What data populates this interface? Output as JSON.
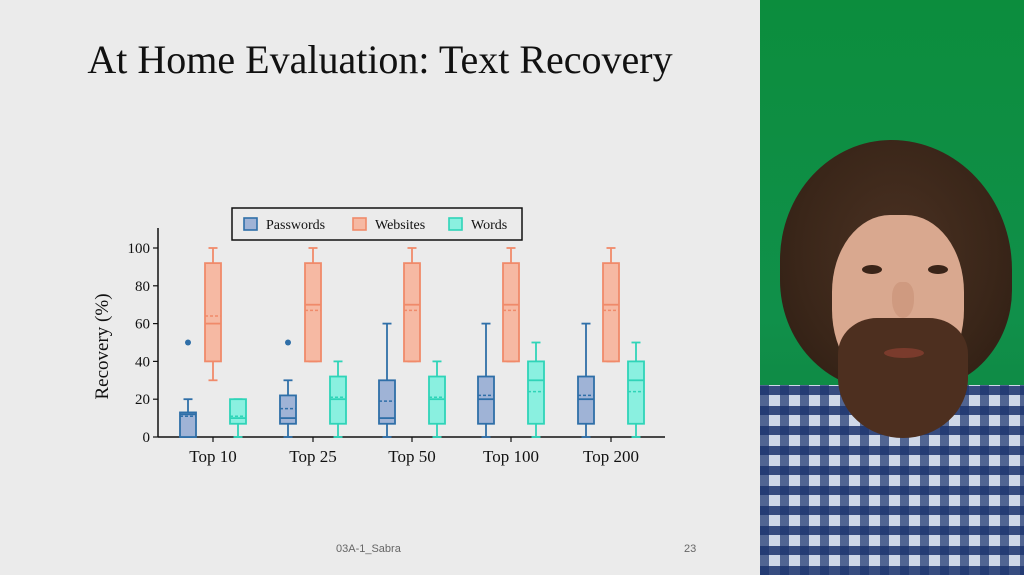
{
  "slide": {
    "title": "At Home Evaluation: Text Recovery",
    "footer_left": "03A-1_Sabra",
    "footer_right": "23"
  },
  "chart_data": {
    "type": "boxplot",
    "title": "",
    "xlabel": "",
    "ylabel": "Recovery (%)",
    "ylim": [
      0,
      100
    ],
    "yticks": [
      0,
      20,
      40,
      60,
      80,
      100
    ],
    "categories": [
      "Top 10",
      "Top 25",
      "Top 50",
      "Top 100",
      "Top 200"
    ],
    "legend_position": "top-center",
    "series": [
      {
        "name": "Passwords",
        "color": "#2f6fa8",
        "fill": "#9fb3d6",
        "boxes": [
          {
            "whisker_low": 0,
            "q1": 0,
            "median": 12,
            "mean": 11,
            "q3": 13,
            "whisker_high": 20,
            "outliers": [
              50
            ]
          },
          {
            "whisker_low": 0,
            "q1": 7,
            "median": 10,
            "mean": 15,
            "q3": 22,
            "whisker_high": 30,
            "outliers": [
              50
            ]
          },
          {
            "whisker_low": 0,
            "q1": 7,
            "median": 10,
            "mean": 19,
            "q3": 30,
            "whisker_high": 60,
            "outliers": []
          },
          {
            "whisker_low": 0,
            "q1": 7,
            "median": 20,
            "mean": 22,
            "q3": 32,
            "whisker_high": 60,
            "outliers": []
          },
          {
            "whisker_low": 0,
            "q1": 7,
            "median": 20,
            "mean": 22,
            "q3": 32,
            "whisker_high": 60,
            "outliers": []
          }
        ]
      },
      {
        "name": "Websites",
        "color": "#f08a6a",
        "fill": "#f6b9a3",
        "boxes": [
          {
            "whisker_low": 30,
            "q1": 40,
            "median": 60,
            "mean": 64,
            "q3": 92,
            "whisker_high": 100,
            "outliers": []
          },
          {
            "whisker_low": 40,
            "q1": 40,
            "median": 70,
            "mean": 67,
            "q3": 92,
            "whisker_high": 100,
            "outliers": []
          },
          {
            "whisker_low": 40,
            "q1": 40,
            "median": 70,
            "mean": 67,
            "q3": 92,
            "whisker_high": 100,
            "outliers": []
          },
          {
            "whisker_low": 40,
            "q1": 40,
            "median": 70,
            "mean": 67,
            "q3": 92,
            "whisker_high": 100,
            "outliers": []
          },
          {
            "whisker_low": 40,
            "q1": 40,
            "median": 70,
            "mean": 67,
            "q3": 92,
            "whisker_high": 100,
            "outliers": []
          }
        ]
      },
      {
        "name": "Words",
        "color": "#2fd4b8",
        "fill": "#8af0e0",
        "boxes": [
          {
            "whisker_low": 0,
            "q1": 7,
            "median": 10,
            "mean": 11,
            "q3": 20,
            "whisker_high": 20,
            "outliers": []
          },
          {
            "whisker_low": 0,
            "q1": 7,
            "median": 20,
            "mean": 21,
            "q3": 32,
            "whisker_high": 40,
            "outliers": []
          },
          {
            "whisker_low": 0,
            "q1": 7,
            "median": 20,
            "mean": 21,
            "q3": 32,
            "whisker_high": 40,
            "outliers": []
          },
          {
            "whisker_low": 0,
            "q1": 7,
            "median": 30,
            "mean": 24,
            "q3": 40,
            "whisker_high": 50,
            "outliers": []
          },
          {
            "whisker_low": 0,
            "q1": 7,
            "median": 30,
            "mean": 24,
            "q3": 40,
            "whisker_high": 50,
            "outliers": []
          }
        ]
      }
    ]
  },
  "webcam": {
    "background_color": "#0f8a3e"
  }
}
